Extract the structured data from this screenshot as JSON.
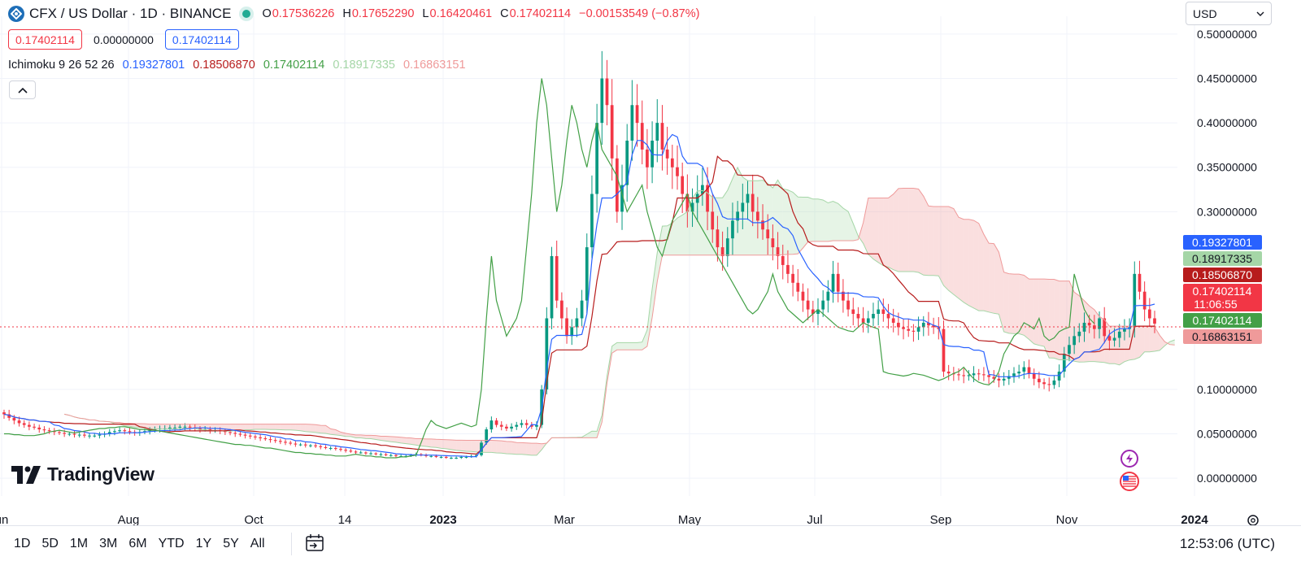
{
  "header": {
    "symbol_title": "CFX / US Dollar · 1D · BINANCE",
    "ohlc": [
      {
        "k": "O",
        "v": "0.17536226"
      },
      {
        "k": "H",
        "v": "0.17652290"
      },
      {
        "k": "L",
        "v": "0.16420461"
      },
      {
        "k": "C",
        "v": "0.17402114"
      }
    ],
    "change": "−0.00153549 (−0.87%)"
  },
  "price_boxes": {
    "bid": "0.17402114",
    "spread": "0.00000000",
    "ask": "0.17402114"
  },
  "indicator": {
    "name": "Ichimoku 9 26 52 26",
    "values": [
      {
        "v": "0.19327801",
        "color": "#2962ff"
      },
      {
        "v": "0.18506870",
        "color": "#b71c1c"
      },
      {
        "v": "0.17402114",
        "color": "#43a047"
      },
      {
        "v": "0.18917335",
        "color": "#a5d6a7"
      },
      {
        "v": "0.16863151",
        "color": "#ef9a9a"
      }
    ]
  },
  "currency": {
    "selected": "USD"
  },
  "price_axis": {
    "ticks": [
      "0.50000000",
      "0.45000000",
      "0.40000000",
      "0.35000000",
      "0.30000000",
      "0.10000000",
      "0.05000000",
      "0.00000000"
    ]
  },
  "price_labels": [
    {
      "text": "0.19327801",
      "color": "#2962ff"
    },
    {
      "text": "0.18917335",
      "color": "#a5d6a7"
    },
    {
      "text": "0.18506870",
      "color": "#b71c1c"
    },
    {
      "text": "0.17402114",
      "sub": "11:06:55",
      "color": "#f23645"
    },
    {
      "text": "0.17402114",
      "color": "#43a047"
    },
    {
      "text": "0.16863151",
      "color": "#ef9a9a"
    }
  ],
  "time_axis": {
    "ticks": [
      {
        "label": "un",
        "bold": false
      },
      {
        "label": "Aug",
        "bold": false
      },
      {
        "label": "Oct",
        "bold": false
      },
      {
        "label": "14",
        "bold": false
      },
      {
        "label": "2023",
        "bold": true
      },
      {
        "label": "Mar",
        "bold": false
      },
      {
        "label": "May",
        "bold": false
      },
      {
        "label": "Jul",
        "bold": false
      },
      {
        "label": "Sep",
        "bold": false
      },
      {
        "label": "Nov",
        "bold": false
      },
      {
        "label": "2024",
        "bold": true
      }
    ]
  },
  "bottom_bar": {
    "ranges": [
      "1D",
      "5D",
      "1M",
      "3M",
      "6M",
      "YTD",
      "1Y",
      "5Y",
      "All"
    ],
    "clock": "12:53:06 (UTC)"
  },
  "logo": {
    "text": "TradingView"
  },
  "icons": [
    "calendar-range-icon",
    "settings-icon",
    "lightning-icon",
    "us-flag-icon"
  ],
  "chart_data": {
    "type": "candlestick",
    "symbol": "CFX / US Dollar",
    "interval": "1D",
    "ylim": [
      -0.02,
      0.52
    ],
    "colors": {
      "up": "#089981",
      "down": "#f23645",
      "tenkan": "#2962ff",
      "kijun": "#b71c1c",
      "chikou": "#43a047",
      "span_a": "#a5d6a7",
      "span_b": "#ef9a9a"
    },
    "close": [
      0.072,
      0.068,
      0.065,
      0.062,
      0.06,
      0.058,
      0.057,
      0.055,
      0.054,
      0.053,
      0.052,
      0.051,
      0.05,
      0.05,
      0.049,
      0.049,
      0.048,
      0.048,
      0.048,
      0.049,
      0.05,
      0.052,
      0.053,
      0.054,
      0.053,
      0.052,
      0.051,
      0.052,
      0.053,
      0.054,
      0.055,
      0.056,
      0.056,
      0.057,
      0.057,
      0.058,
      0.058,
      0.057,
      0.056,
      0.055,
      0.055,
      0.054,
      0.054,
      0.053,
      0.052,
      0.051,
      0.05,
      0.049,
      0.048,
      0.047,
      0.046,
      0.045,
      0.044,
      0.043,
      0.042,
      0.041,
      0.04,
      0.039,
      0.038,
      0.038,
      0.037,
      0.037,
      0.036,
      0.035,
      0.034,
      0.034,
      0.033,
      0.032,
      0.031,
      0.03,
      0.029,
      0.029,
      0.028,
      0.028,
      0.027,
      0.027,
      0.026,
      0.026,
      0.025,
      0.025,
      0.025,
      0.026,
      0.027,
      0.026,
      0.025,
      0.025,
      0.024,
      0.024,
      0.023,
      0.023,
      0.023,
      0.024,
      0.024,
      0.025,
      0.026,
      0.04,
      0.055,
      0.065,
      0.06,
      0.058,
      0.056,
      0.058,
      0.06,
      0.062,
      0.06,
      0.058,
      0.06,
      0.1,
      0.18,
      0.25,
      0.2,
      0.18,
      0.16,
      0.17,
      0.18,
      0.2,
      0.26,
      0.32,
      0.4,
      0.45,
      0.42,
      0.36,
      0.3,
      0.33,
      0.38,
      0.42,
      0.4,
      0.37,
      0.35,
      0.38,
      0.4,
      0.37,
      0.36,
      0.35,
      0.34,
      0.32,
      0.3,
      0.31,
      0.32,
      0.33,
      0.3,
      0.28,
      0.26,
      0.25,
      0.27,
      0.29,
      0.3,
      0.31,
      0.32,
      0.3,
      0.29,
      0.28,
      0.27,
      0.26,
      0.25,
      0.24,
      0.23,
      0.22,
      0.21,
      0.2,
      0.19,
      0.185,
      0.19,
      0.2,
      0.21,
      0.23,
      0.21,
      0.2,
      0.19,
      0.185,
      0.18,
      0.175,
      0.18,
      0.185,
      0.19,
      0.185,
      0.18,
      0.175,
      0.17,
      0.168,
      0.166,
      0.165,
      0.17,
      0.175,
      0.172,
      0.17,
      0.168,
      0.12,
      0.118,
      0.117,
      0.116,
      0.115,
      0.116,
      0.118,
      0.117,
      0.116,
      0.114,
      0.112,
      0.11,
      0.112,
      0.115,
      0.118,
      0.12,
      0.125,
      0.118,
      0.112,
      0.108,
      0.106,
      0.105,
      0.11,
      0.12,
      0.14,
      0.15,
      0.16,
      0.165,
      0.175,
      0.172,
      0.168,
      0.18,
      0.16,
      0.155,
      0.158,
      0.165,
      0.168,
      0.17,
      0.23,
      0.21,
      0.19,
      0.18,
      0.174
    ]
  }
}
